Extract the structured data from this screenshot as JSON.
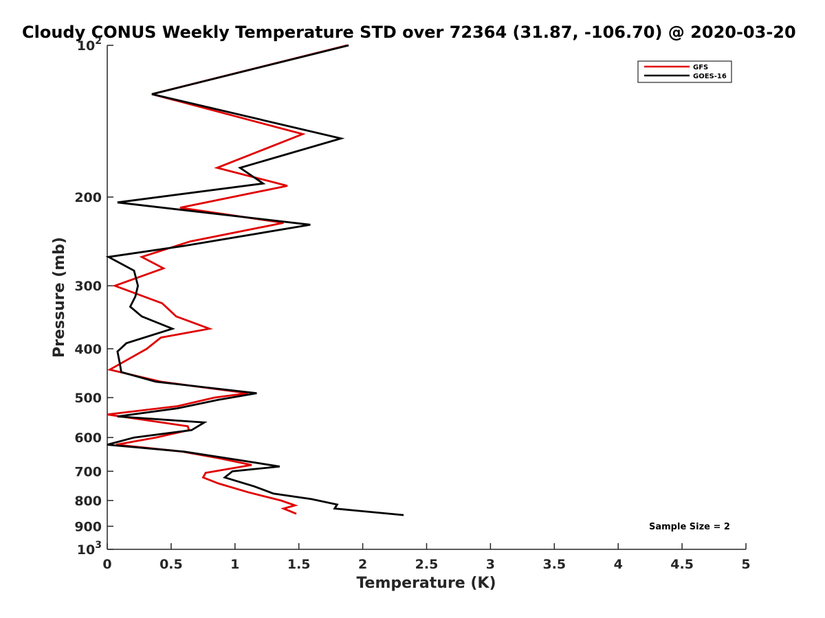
{
  "chart_data": {
    "type": "line",
    "title": "Cloudy CONUS Weekly Temperature STD over 72364 (31.87, -106.70) @ 2020-03-20",
    "xlabel": "Temperature (K)",
    "ylabel": "Pressure (mb)",
    "xlim": [
      0,
      5
    ],
    "ylim": [
      100,
      1000
    ],
    "y_scale": "log",
    "y_reversed": true,
    "grid": false,
    "legend_position": "top-right",
    "x_ticks": [
      "0",
      "0.5",
      "1",
      "1.5",
      "2",
      "2.5",
      "3",
      "3.5",
      "4",
      "4.5",
      "5"
    ],
    "x_tick_values": [
      0,
      0.5,
      1,
      1.5,
      2,
      2.5,
      3,
      3.5,
      4,
      4.5,
      5
    ],
    "y_ticks": [
      {
        "value": 100,
        "base": "10",
        "exp": "2"
      },
      {
        "value": 200,
        "label": "200"
      },
      {
        "value": 300,
        "label": "300"
      },
      {
        "value": 400,
        "label": "400"
      },
      {
        "value": 500,
        "label": "500"
      },
      {
        "value": 600,
        "label": "600"
      },
      {
        "value": 700,
        "label": "700"
      },
      {
        "value": 800,
        "label": "800"
      },
      {
        "value": 900,
        "label": "900"
      },
      {
        "value": 1000,
        "base": "10",
        "exp": "3"
      }
    ],
    "annotation": "Sample Size = 2",
    "series": [
      {
        "name": "GFS",
        "color": "#e00000",
        "points": [
          [
            1.88,
            100
          ],
          [
            0.35,
            125
          ],
          [
            1.53,
            150
          ],
          [
            0.86,
            175
          ],
          [
            1.41,
            190
          ],
          [
            0.57,
            210
          ],
          [
            1.38,
            225
          ],
          [
            0.65,
            245
          ],
          [
            0.27,
            263
          ],
          [
            0.44,
            277
          ],
          [
            0.06,
            300
          ],
          [
            0.43,
            325
          ],
          [
            0.54,
            345
          ],
          [
            0.8,
            365
          ],
          [
            0.42,
            380
          ],
          [
            0.31,
            400
          ],
          [
            0.02,
            440
          ],
          [
            0.42,
            465
          ],
          [
            1.1,
            490
          ],
          [
            0.84,
            500
          ],
          [
            0.55,
            520
          ],
          [
            0.0,
            540
          ],
          [
            0.63,
            570
          ],
          [
            0.64,
            580
          ],
          [
            0.38,
            600
          ],
          [
            0.07,
            620
          ],
          [
            0.59,
            640
          ],
          [
            0.88,
            660
          ],
          [
            1.13,
            680
          ],
          [
            0.77,
            705
          ],
          [
            0.75,
            720
          ],
          [
            0.87,
            740
          ],
          [
            1.1,
            770
          ],
          [
            1.36,
            800
          ],
          [
            1.47,
            818
          ],
          [
            1.38,
            830
          ],
          [
            1.48,
            850
          ]
        ]
      },
      {
        "name": "GOES-16",
        "color": "#000000",
        "points": [
          [
            1.89,
            100
          ],
          [
            0.35,
            125
          ],
          [
            1.83,
            153
          ],
          [
            1.04,
            175
          ],
          [
            1.22,
            188
          ],
          [
            0.08,
            205
          ],
          [
            1.59,
            227
          ],
          [
            0.6,
            250
          ],
          [
            0.01,
            263
          ],
          [
            0.21,
            280
          ],
          [
            0.24,
            300
          ],
          [
            0.22,
            315
          ],
          [
            0.18,
            330
          ],
          [
            0.27,
            345
          ],
          [
            0.51,
            365
          ],
          [
            0.15,
            390
          ],
          [
            0.08,
            405
          ],
          [
            0.1,
            430
          ],
          [
            0.11,
            445
          ],
          [
            0.38,
            465
          ],
          [
            1.17,
            490
          ],
          [
            0.87,
            505
          ],
          [
            0.55,
            525
          ],
          [
            0.08,
            545
          ],
          [
            0.76,
            560
          ],
          [
            0.66,
            580
          ],
          [
            0.21,
            600
          ],
          [
            0.0,
            620
          ],
          [
            0.6,
            640
          ],
          [
            1.03,
            665
          ],
          [
            1.35,
            685
          ],
          [
            0.98,
            700
          ],
          [
            0.92,
            720
          ],
          [
            1.15,
            750
          ],
          [
            1.3,
            775
          ],
          [
            1.6,
            795
          ],
          [
            1.8,
            815
          ],
          [
            1.78,
            830
          ],
          [
            2.32,
            855
          ]
        ]
      }
    ]
  }
}
